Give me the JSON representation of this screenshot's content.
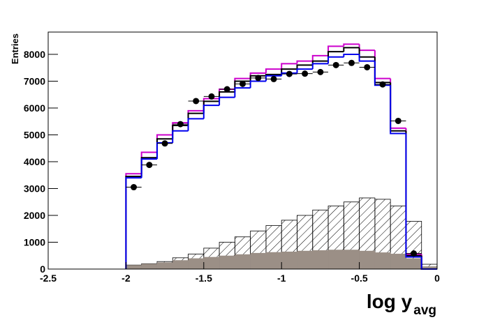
{
  "chart_data": {
    "type": "histogram",
    "ylabel": "Entries",
    "xlabel": "log y",
    "xlabel_subscript": "avg",
    "xlim": [
      -2.5,
      0
    ],
    "ylim": [
      0,
      8830
    ],
    "xticks": [
      -2.5,
      -2,
      -1.5,
      -1,
      -0.5,
      0
    ],
    "yticks": [
      0,
      1000,
      2000,
      3000,
      4000,
      5000,
      6000,
      7000,
      8000
    ],
    "bins": [
      -2.0,
      -1.9,
      -1.8,
      -1.7,
      -1.6,
      -1.5,
      -1.4,
      -1.3,
      -1.2,
      -1.1,
      -1.0,
      -0.9,
      -0.8,
      -0.7,
      -0.6,
      -0.5,
      -0.4,
      -0.3,
      -0.2,
      -0.1,
      0
    ],
    "series": [
      {
        "style": "hatch",
        "color": "#000000",
        "values": [
          150,
          200,
          280,
          420,
          560,
          780,
          1000,
          1200,
          1420,
          1620,
          1820,
          2000,
          2200,
          2350,
          2500,
          2650,
          2600,
          2350,
          1780,
          180
        ]
      },
      {
        "style": "fill",
        "color": "#9b8f86",
        "values": [
          150,
          200,
          250,
          330,
          400,
          450,
          500,
          550,
          600,
          630,
          650,
          680,
          700,
          720,
          720,
          680,
          620,
          570,
          400,
          100
        ]
      },
      {
        "style": "line",
        "color": "#cc00cc",
        "values": [
          3550,
          4350,
          5000,
          5450,
          5900,
          6350,
          6700,
          7100,
          7300,
          7450,
          7650,
          7750,
          7950,
          8300,
          8380,
          8150,
          7100,
          5250,
          550,
          0
        ]
      },
      {
        "style": "line",
        "color": "#000000",
        "values": [
          3450,
          4150,
          4850,
          5350,
          5800,
          6250,
          6600,
          7000,
          7200,
          7250,
          7450,
          7600,
          7750,
          8100,
          8250,
          7900,
          6950,
          5150,
          500,
          0
        ]
      },
      {
        "style": "line",
        "color": "#0000ee",
        "values": [
          3400,
          4100,
          4700,
          5150,
          5600,
          6100,
          6400,
          6750,
          7000,
          7200,
          7300,
          7450,
          7650,
          7900,
          8000,
          7750,
          6850,
          5050,
          450,
          0
        ]
      }
    ],
    "points": {
      "color": "#000000",
      "x": [
        -1.95,
        -1.85,
        -1.75,
        -1.65,
        -1.55,
        -1.45,
        -1.35,
        -1.25,
        -1.15,
        -1.05,
        -0.95,
        -0.85,
        -0.75,
        -0.65,
        -0.55,
        -0.45,
        -0.35,
        -0.25,
        -0.15
      ],
      "values": [
        3050,
        3880,
        4680,
        5400,
        6260,
        6430,
        6700,
        6900,
        7120,
        7080,
        7270,
        7280,
        7340,
        7600,
        7680,
        7520,
        6880,
        5520,
        580
      ]
    }
  }
}
